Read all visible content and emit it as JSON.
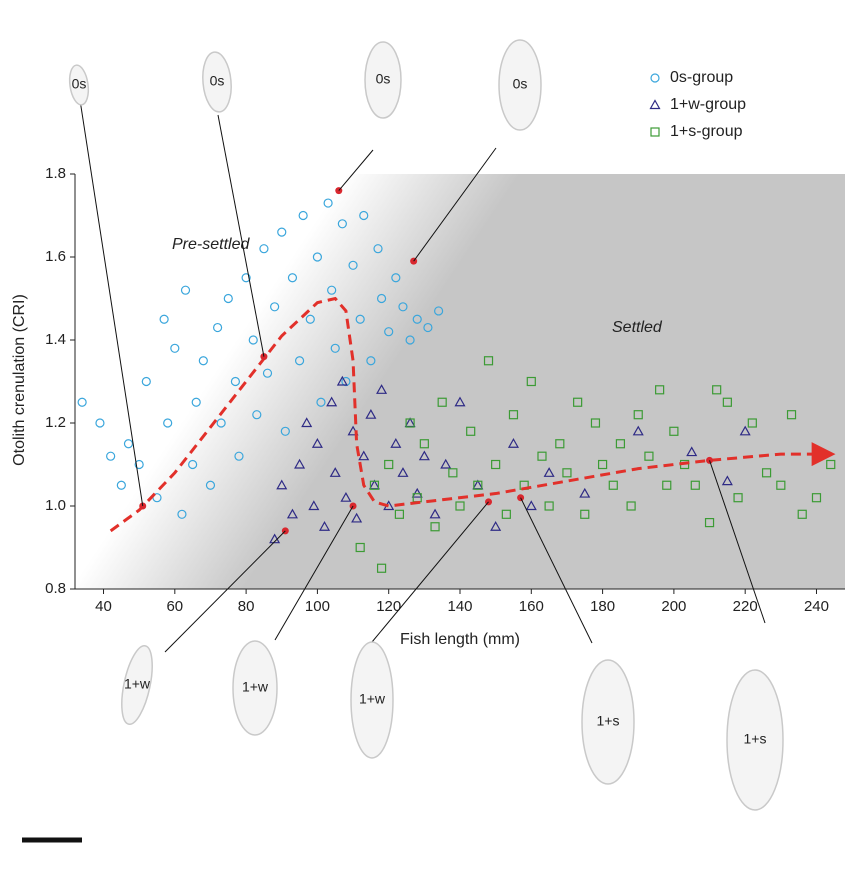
{
  "chart_data": {
    "type": "scatter",
    "x_label": "Fish length (mm)",
    "y_label": "Otolith crenulation (CRI)",
    "annotations": [
      "Pre-settled",
      "Settled"
    ],
    "xlim": [
      32,
      248
    ],
    "ylim": [
      0.8,
      1.8
    ],
    "xticks": [
      40,
      60,
      80,
      100,
      120,
      140,
      160,
      180,
      200,
      220,
      240
    ],
    "yticks": [
      0.8,
      {
        "value": 1,
        "label": "1.0"
      },
      1.2,
      1.4,
      1.6,
      1.8
    ],
    "legend": "top-right",
    "series": [
      {
        "name": "0s-group",
        "marker": "circle",
        "color": "#3aa6dc",
        "x": [
          34,
          39,
          42,
          45,
          47,
          50,
          52,
          55,
          57,
          58,
          60,
          62,
          63,
          65,
          66,
          68,
          70,
          72,
          73,
          75,
          77,
          78,
          80,
          82,
          83,
          85,
          86,
          88,
          90,
          91,
          93,
          95,
          96,
          98,
          100,
          101,
          103,
          104,
          105,
          107,
          108,
          110,
          112,
          113,
          115,
          117,
          118,
          120,
          122,
          124,
          126,
          128,
          131,
          134
        ],
        "y": [
          1.25,
          1.2,
          1.12,
          1.05,
          1.15,
          1.1,
          1.3,
          1.02,
          1.45,
          1.2,
          1.38,
          0.98,
          1.52,
          1.1,
          1.25,
          1.35,
          1.05,
          1.43,
          1.2,
          1.5,
          1.3,
          1.12,
          1.55,
          1.4,
          1.22,
          1.62,
          1.32,
          1.48,
          1.66,
          1.18,
          1.55,
          1.35,
          1.7,
          1.45,
          1.6,
          1.25,
          1.73,
          1.52,
          1.38,
          1.68,
          1.3,
          1.58,
          1.45,
          1.7,
          1.35,
          1.62,
          1.5,
          1.42,
          1.55,
          1.48,
          1.4,
          1.45,
          1.43,
          1.47
        ]
      },
      {
        "name": "1+w-group",
        "marker": "triangle",
        "color": "#2e2a85",
        "x": [
          88,
          90,
          93,
          95,
          97,
          99,
          100,
          102,
          104,
          105,
          107,
          108,
          110,
          111,
          113,
          115,
          116,
          118,
          120,
          122,
          124,
          126,
          128,
          130,
          133,
          136,
          140,
          145,
          150,
          155,
          160,
          165,
          175,
          190,
          205,
          215,
          220
        ],
        "y": [
          0.92,
          1.05,
          0.98,
          1.1,
          1.2,
          1.0,
          1.15,
          0.95,
          1.25,
          1.08,
          1.3,
          1.02,
          1.18,
          0.97,
          1.12,
          1.22,
          1.05,
          1.28,
          1.0,
          1.15,
          1.08,
          1.2,
          1.03,
          1.12,
          0.98,
          1.1,
          1.25,
          1.05,
          0.95,
          1.15,
          1.0,
          1.08,
          1.03,
          1.18,
          1.13,
          1.06,
          1.18
        ]
      },
      {
        "name": "1+s-group",
        "marker": "square",
        "color": "#3c9b35",
        "x": [
          112,
          116,
          118,
          120,
          123,
          126,
          128,
          130,
          133,
          135,
          138,
          140,
          143,
          145,
          148,
          150,
          153,
          155,
          158,
          160,
          163,
          165,
          168,
          170,
          173,
          175,
          178,
          180,
          183,
          185,
          188,
          190,
          193,
          196,
          198,
          200,
          203,
          206,
          210,
          212,
          215,
          218,
          222,
          226,
          230,
          233,
          236,
          240,
          244
        ],
        "y": [
          0.9,
          1.05,
          0.85,
          1.1,
          0.98,
          1.2,
          1.02,
          1.15,
          0.95,
          1.25,
          1.08,
          1.0,
          1.18,
          1.05,
          1.35,
          1.1,
          0.98,
          1.22,
          1.05,
          1.3,
          1.12,
          1.0,
          1.15,
          1.08,
          1.25,
          0.98,
          1.2,
          1.1,
          1.05,
          1.15,
          1.0,
          1.22,
          1.12,
          1.28,
          1.05,
          1.18,
          1.1,
          1.05,
          0.96,
          1.28,
          1.25,
          1.02,
          1.2,
          1.08,
          1.05,
          1.22,
          0.98,
          1.02,
          1.1
        ]
      },
      {
        "marker": "dashed-line",
        "color": "#e2302a",
        "x": [
          42,
          50,
          60,
          70,
          80,
          90,
          100,
          105,
          108,
          110,
          111,
          113,
          116,
          120,
          130,
          150,
          170,
          190,
          210,
          230,
          242
        ],
        "y": [
          0.94,
          0.99,
          1.08,
          1.19,
          1.3,
          1.41,
          1.49,
          1.5,
          1.47,
          1.35,
          1.15,
          1.05,
          1.01,
          1.0,
          1.01,
          1.03,
          1.06,
          1.09,
          1.11,
          1.125,
          1.125
        ]
      },
      {
        "marker": "dot",
        "color": "#d9272e",
        "x": [
          51,
          85,
          106,
          127,
          91,
          110,
          148,
          157,
          210
        ],
        "y": [
          1.0,
          1.36,
          1.76,
          1.59,
          0.94,
          1.0,
          1.01,
          1.02,
          1.11
        ]
      }
    ]
  },
  "otoliths": {
    "labels": [
      "0s",
      "0s",
      "0s",
      "0s",
      "1+w",
      "1+w",
      "1+w",
      "1+s",
      "1+s"
    ]
  }
}
